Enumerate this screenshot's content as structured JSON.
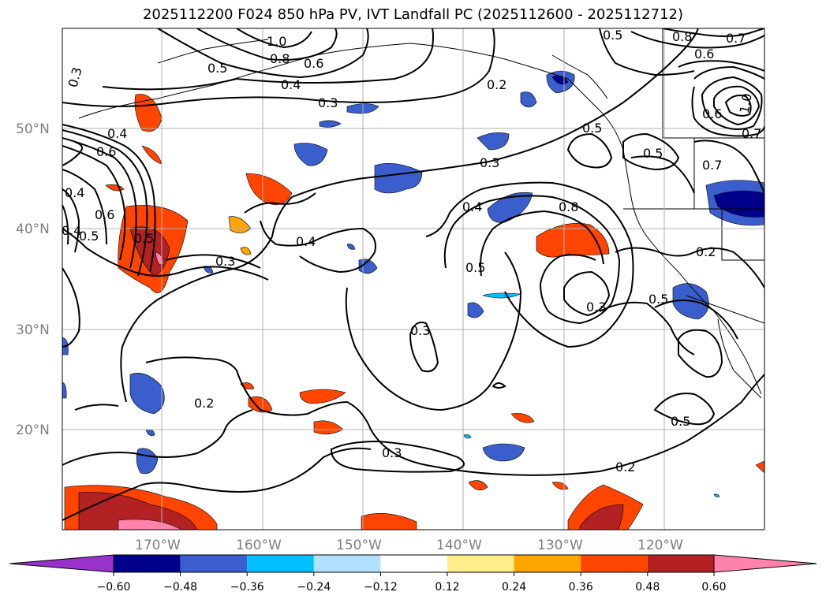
{
  "title": "2025112200 F024 850 hPa PV, IVT Landfall PC (2025112600 - 2025112712)",
  "lat_labels": [
    "50°N",
    "40°N",
    "30°N",
    "20°N"
  ],
  "lon_labels": [
    "170°W",
    "160°W",
    "150°W",
    "140°W",
    "130°W",
    "120°W"
  ],
  "contour_labels": [
    "0.3",
    "1.0",
    "0.8",
    "0.6",
    "0.5",
    "0.4",
    "0.3",
    "0.2",
    "0.5",
    "0.8",
    "0.6",
    "0.7",
    "0.6",
    "1.0",
    "0.7",
    "0.4",
    "0.5",
    "0.3",
    "0.4",
    "0.6",
    "0.5",
    "0.7",
    "0.4",
    "0.8",
    "0.6",
    "0.4",
    "0.5",
    "0.5",
    "0.3",
    "0.4",
    "0.3",
    "0.2",
    "0.2",
    "0.5",
    "0.5",
    "0.3",
    "0.3",
    "0.2",
    "0.5"
  ],
  "colorbar": {
    "ticks": [
      "−0.60",
      "−0.48",
      "−0.36",
      "−0.24",
      "−0.12",
      "0.12",
      "0.24",
      "0.36",
      "0.48",
      "0.60"
    ],
    "colors": [
      "#9932cc",
      "#00008b",
      "#3a5fcd",
      "#00bfff",
      "#b0e2ff",
      "#ffffff",
      "#ffec8b",
      "#ffa500",
      "#ff4500",
      "#b22222",
      "#ff82ab"
    ]
  }
}
